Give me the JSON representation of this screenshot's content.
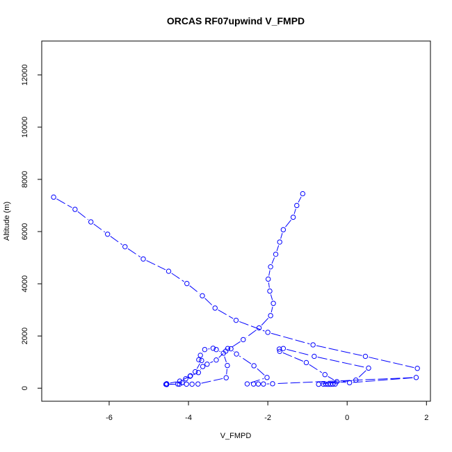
{
  "chart_data": {
    "type": "line",
    "title": "ORCAS RF07upwind V_FMPD",
    "xlabel": "V_FMPD",
    "ylabel": "Altitude (m)",
    "xlim": [
      -7.7,
      2.1
    ],
    "ylim": [
      -500,
      13300
    ],
    "xticks": [
      -6,
      -4,
      -2,
      0,
      2
    ],
    "yticks": [
      0,
      2000,
      4000,
      6000,
      8000,
      10000,
      12000
    ],
    "grid": false,
    "legend": "none",
    "style": {
      "line_color": "#0000ff",
      "marker": "open-circle",
      "line": "dashed"
    },
    "series": [
      {
        "x": [
          -1.12,
          -1.27,
          -1.36,
          -1.61,
          -1.7,
          -1.8,
          -1.93,
          -1.99,
          -1.95,
          -1.86,
          -1.93,
          -2.22,
          -2.62,
          -3.06,
          -3.3,
          -3.53,
          -3.64,
          -3.75,
          -3.96,
          -4.22,
          -4.55,
          -4.57,
          -4.23,
          -4.05,
          -3.91,
          -3.76,
          -3.05,
          -3.02,
          -3.12,
          -3.3,
          -3.38,
          -3.59,
          -3.7,
          -3.74,
          -3.67,
          -3.83,
          -3.95,
          -4.07,
          -4.16,
          -4.27,
          -4.55
        ],
        "y": [
          7450,
          7000,
          6550,
          6070,
          5600,
          5130,
          4650,
          4180,
          3720,
          3250,
          2780,
          2310,
          1860,
          1420,
          1080,
          920,
          830,
          600,
          460,
          270,
          170,
          150,
          155,
          155,
          155,
          160,
          400,
          870,
          1340,
          1480,
          1530,
          1480,
          1260,
          1090,
          1060,
          630,
          475,
          360,
          210,
          160,
          140
        ]
      },
      {
        "x": [
          -7.4,
          -6.86,
          -6.46,
          -6.04,
          -5.6,
          -5.14,
          -4.5,
          -4.04,
          -3.65,
          -3.33,
          -2.8,
          -2.0,
          -0.86,
          0.46,
          1.77
        ],
        "y": [
          7320,
          6850,
          6370,
          5900,
          5420,
          4950,
          4480,
          4010,
          3540,
          3070,
          2600,
          2140,
          1660,
          1220,
          760
        ]
      },
      {
        "x": [
          -1.71,
          -1.61,
          -0.83,
          0.54,
          0.22,
          -0.72,
          -0.6,
          -0.54,
          -0.48,
          -0.42,
          -0.36,
          -0.3
        ],
        "y": [
          1500,
          1520,
          1220,
          770,
          310,
          150,
          155,
          155,
          150,
          150,
          155,
          160
        ]
      },
      {
        "x": [
          -1.7,
          -1.03,
          -0.56,
          -0.26,
          0.06,
          1.74,
          -1.88,
          -2.11,
          -2.24,
          -2.36,
          -2.52,
          -2.02,
          -2.35,
          -2.79,
          -2.93,
          -3.01
        ],
        "y": [
          1410,
          980,
          520,
          250,
          210,
          410,
          170,
          160,
          160,
          160,
          165,
          410,
          860,
          1310,
          1510,
          1520
        ]
      }
    ]
  }
}
